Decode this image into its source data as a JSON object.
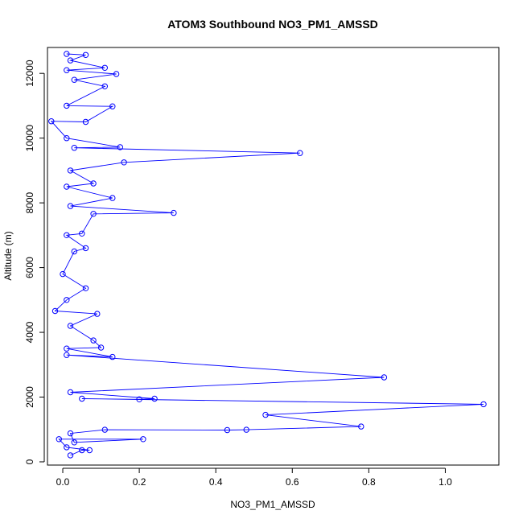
{
  "chart_data": {
    "type": "line",
    "title": "ATOM3 Southbound NO3_PM1_AMSSD",
    "xlabel": "NO3_PM1_AMSSD",
    "ylabel": "Altitude (m)",
    "xlim": [
      -0.04,
      1.14
    ],
    "ylim": [
      -100,
      12800
    ],
    "x_ticks": [
      0.0,
      0.2,
      0.4,
      0.6,
      0.8,
      1.0
    ],
    "x_tick_labels": [
      "0.0",
      "0.2",
      "0.4",
      "0.6",
      "0.8",
      "1.0"
    ],
    "y_ticks": [
      0,
      2000,
      4000,
      6000,
      8000,
      10000,
      12000
    ],
    "y_tick_labels": [
      "0",
      "2000",
      "4000",
      "6000",
      "8000",
      "10000",
      "12000"
    ],
    "grid": false,
    "series_color": "#0000ff",
    "markers": "open-circle",
    "series": [
      {
        "points": [
          {
            "x": 0.02,
            "y": 200
          },
          {
            "x": 0.05,
            "y": 360
          },
          {
            "x": 0.07,
            "y": 360
          },
          {
            "x": 0.01,
            "y": 450
          },
          {
            "x": -0.01,
            "y": 700
          },
          {
            "x": 0.21,
            "y": 700
          },
          {
            "x": 0.03,
            "y": 600
          },
          {
            "x": 0.02,
            "y": 880
          },
          {
            "x": 0.11,
            "y": 990
          },
          {
            "x": 0.43,
            "y": 980
          },
          {
            "x": 0.48,
            "y": 990
          },
          {
            "x": 0.78,
            "y": 1090
          },
          {
            "x": 0.53,
            "y": 1450
          },
          {
            "x": 1.1,
            "y": 1780
          },
          {
            "x": 0.05,
            "y": 1950
          },
          {
            "x": 0.2,
            "y": 1930
          },
          {
            "x": 0.24,
            "y": 1950
          },
          {
            "x": 0.02,
            "y": 2150
          },
          {
            "x": 0.84,
            "y": 2610
          },
          {
            "x": 0.01,
            "y": 3300
          },
          {
            "x": 0.13,
            "y": 3240
          },
          {
            "x": 0.01,
            "y": 3500
          },
          {
            "x": 0.1,
            "y": 3530
          },
          {
            "x": 0.08,
            "y": 3750
          },
          {
            "x": 0.02,
            "y": 4200
          },
          {
            "x": 0.09,
            "y": 4570
          },
          {
            "x": -0.02,
            "y": 4660
          },
          {
            "x": 0.01,
            "y": 5000
          },
          {
            "x": 0.06,
            "y": 5360
          },
          {
            "x": 0.0,
            "y": 5800
          },
          {
            "x": 0.03,
            "y": 6500
          },
          {
            "x": 0.06,
            "y": 6600
          },
          {
            "x": 0.01,
            "y": 7000
          },
          {
            "x": 0.05,
            "y": 7050
          },
          {
            "x": 0.08,
            "y": 7660
          },
          {
            "x": 0.29,
            "y": 7690
          },
          {
            "x": 0.02,
            "y": 7900
          },
          {
            "x": 0.13,
            "y": 8150
          },
          {
            "x": 0.01,
            "y": 8500
          },
          {
            "x": 0.08,
            "y": 8600
          },
          {
            "x": 0.02,
            "y": 9000
          },
          {
            "x": 0.16,
            "y": 9250
          },
          {
            "x": 0.62,
            "y": 9540
          },
          {
            "x": 0.03,
            "y": 9700
          },
          {
            "x": 0.15,
            "y": 9720
          },
          {
            "x": 0.01,
            "y": 10000
          },
          {
            "x": -0.03,
            "y": 10520
          },
          {
            "x": 0.06,
            "y": 10500
          },
          {
            "x": 0.13,
            "y": 10980
          },
          {
            "x": 0.01,
            "y": 11000
          },
          {
            "x": 0.11,
            "y": 11600
          },
          {
            "x": 0.03,
            "y": 11800
          },
          {
            "x": 0.14,
            "y": 11980
          },
          {
            "x": 0.01,
            "y": 12100
          },
          {
            "x": 0.11,
            "y": 12170
          },
          {
            "x": 0.02,
            "y": 12400
          },
          {
            "x": 0.06,
            "y": 12570
          },
          {
            "x": 0.01,
            "y": 12600
          }
        ]
      }
    ]
  }
}
